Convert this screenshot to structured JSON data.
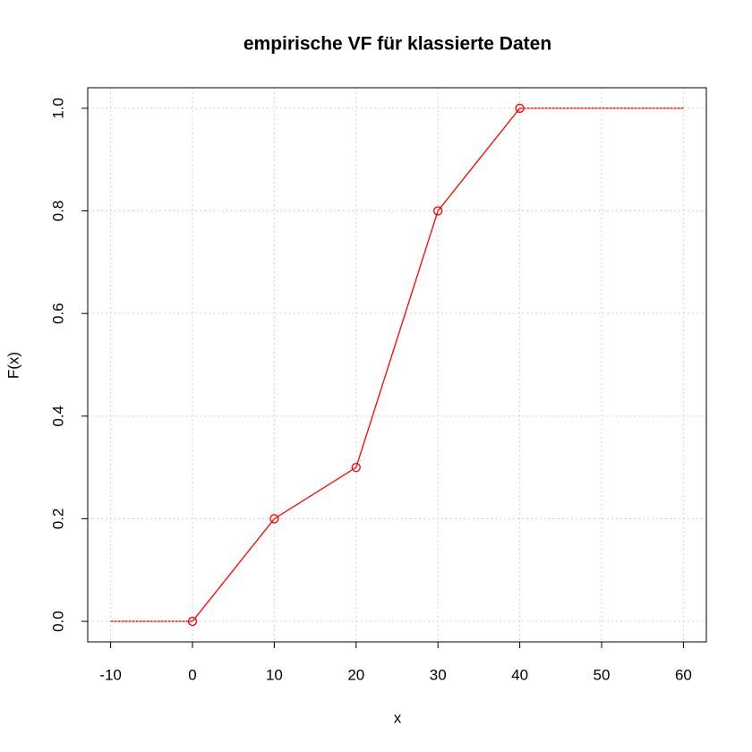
{
  "chart_data": {
    "type": "line",
    "title": "empirische VF für klassierte Daten",
    "x_label": "x",
    "y_label": "F(x)",
    "x": [
      -10,
      0,
      10,
      20,
      30,
      40,
      60
    ],
    "series": [
      {
        "color": "#ff0000",
        "line_style": "solid",
        "markers": true,
        "values": [
          null,
          0,
          0.2,
          0.3,
          0.8,
          1.0,
          null
        ]
      },
      {
        "color": "#ff0000",
        "line_style": "dashed",
        "markers": false,
        "values": [
          0,
          0,
          null,
          null,
          null,
          1.0,
          1.0
        ]
      }
    ],
    "xlim": [
      -12.8,
      62.8
    ],
    "xticks": [
      -10,
      0,
      10,
      20,
      30,
      40,
      50,
      60
    ],
    "ylim": [
      -0.04,
      1.04
    ],
    "yticks": [
      {
        "value": 0,
        "label": "0.0"
      },
      0.2,
      0.4,
      0.6,
      0.8,
      {
        "value": 1,
        "label": "1.0"
      }
    ],
    "grid": true
  }
}
